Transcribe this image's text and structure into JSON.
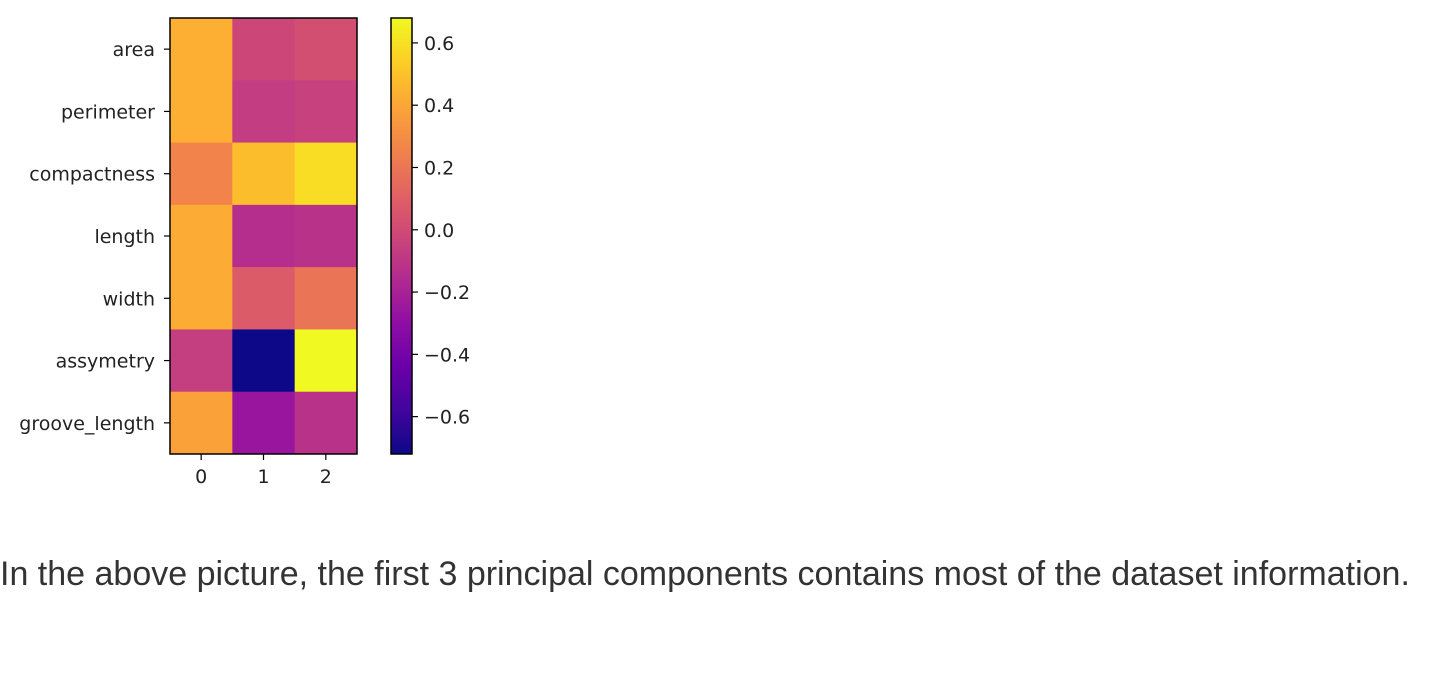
{
  "chart_data": {
    "type": "heatmap",
    "title": "",
    "xlabel": "",
    "ylabel": "",
    "x_categories": [
      "0",
      "1",
      "2"
    ],
    "y_categories": [
      "area",
      "perimeter",
      "compactness",
      "length",
      "width",
      "assymetry",
      "groove_length"
    ],
    "values": [
      [
        0.43,
        -0.02,
        0.02
      ],
      [
        0.43,
        -0.07,
        -0.05
      ],
      [
        0.26,
        0.48,
        0.59
      ],
      [
        0.42,
        -0.14,
        -0.12
      ],
      [
        0.42,
        0.08,
        0.19
      ],
      [
        -0.06,
        -0.72,
        0.68
      ],
      [
        0.38,
        -0.26,
        -0.12
      ]
    ],
    "colorbar": {
      "min": -0.72,
      "max": 0.68,
      "ticks": [
        "0.6",
        "0.4",
        "0.2",
        "0.0",
        "−0.2",
        "−0.4",
        "−0.6"
      ],
      "tick_values": [
        0.6,
        0.4,
        0.2,
        0.0,
        -0.2,
        -0.4,
        -0.6
      ],
      "colormap": "plasma"
    }
  },
  "caption": {
    "text": "In the above picture, the first 3 principal components contains most of the dataset information."
  }
}
